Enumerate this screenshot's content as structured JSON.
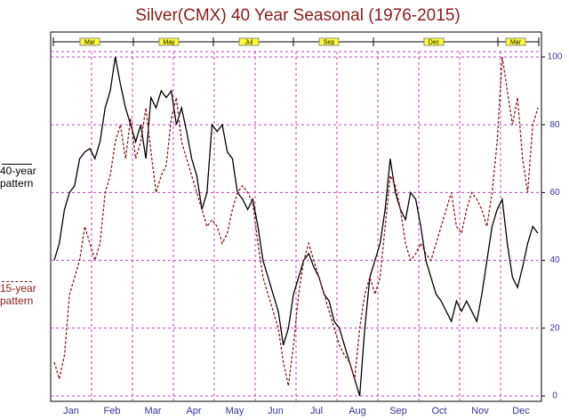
{
  "chart_data": {
    "type": "line",
    "title": "Silver(CMX) 40 Year Seasonal (1976-2015)",
    "x_labels": [
      "Jan",
      "Feb",
      "Mar",
      "Apr",
      "May",
      "Jun",
      "Jul",
      "Aug",
      "Sep",
      "Oct",
      "Nov",
      "Dec"
    ],
    "top_labels": [
      "Mar",
      "May",
      "Jul",
      "Sep",
      "Dec",
      "Mar"
    ],
    "ylim": [
      0,
      100
    ],
    "yticks": [
      0,
      20,
      40,
      60,
      80,
      100
    ],
    "grid": true,
    "series": [
      {
        "name": "40-year pattern",
        "color": "#000000",
        "dash": false,
        "values": [
          40,
          45,
          55,
          60,
          62,
          70,
          72,
          73,
          70,
          75,
          85,
          90,
          100,
          92,
          85,
          80,
          75,
          80,
          70,
          88,
          85,
          90,
          88,
          90,
          80,
          85,
          78,
          70,
          65,
          55,
          60,
          80,
          78,
          80,
          72,
          70,
          60,
          58,
          55,
          58,
          50,
          40,
          35,
          30,
          25,
          15,
          20,
          30,
          35,
          40,
          42,
          38,
          35,
          30,
          28,
          22,
          20,
          15,
          10,
          5,
          0,
          20,
          35,
          40,
          45,
          55,
          70,
          60,
          55,
          52,
          60,
          58,
          50,
          40,
          35,
          30,
          28,
          25,
          22,
          28,
          25,
          28,
          25,
          22,
          30,
          40,
          50,
          55,
          58,
          45,
          35,
          32,
          38,
          45,
          50,
          48
        ]
      },
      {
        "name": "15-year pattern",
        "color": "#8b1a1a",
        "dash": true,
        "values": [
          10,
          5,
          12,
          30,
          35,
          40,
          50,
          45,
          40,
          45,
          60,
          65,
          75,
          80,
          70,
          82,
          70,
          75,
          85,
          72,
          60,
          65,
          68,
          82,
          88,
          75,
          70,
          65,
          60,
          55,
          50,
          52,
          50,
          45,
          48,
          55,
          60,
          62,
          60,
          57,
          45,
          35,
          30,
          25,
          20,
          10,
          3,
          15,
          30,
          40,
          45,
          40,
          35,
          30,
          25,
          20,
          15,
          12,
          10,
          5,
          20,
          30,
          35,
          30,
          35,
          50,
          65,
          62,
          55,
          45,
          40,
          42,
          45,
          42,
          40,
          45,
          50,
          55,
          60,
          50,
          48,
          55,
          60,
          58,
          55,
          50,
          60,
          75,
          100,
          90,
          80,
          88,
          70,
          60,
          80,
          85
        ]
      }
    ]
  }
}
